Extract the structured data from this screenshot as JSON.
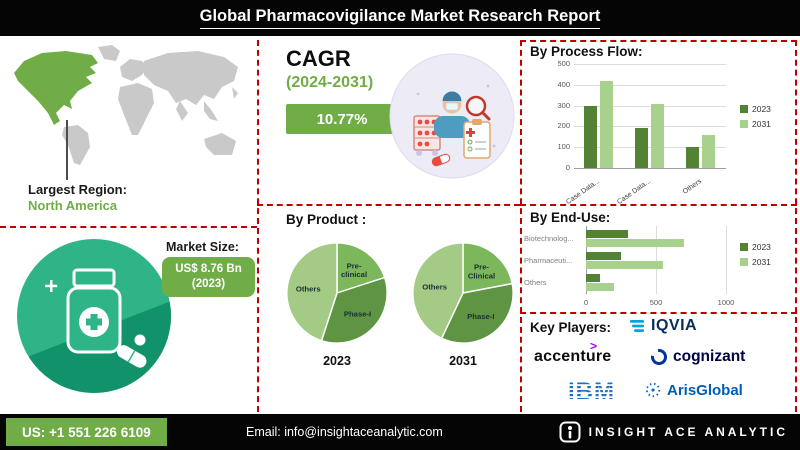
{
  "header": {
    "title": "Global Pharmacovigilance Market Research Report"
  },
  "left_panel": {
    "largest_region_label": "Largest Region:",
    "largest_region_value": "North America",
    "market_size_label": "Market Size:",
    "market_size_value": "US$ 8.76 Bn",
    "market_size_year": "(2023)"
  },
  "cagr": {
    "label": "CAGR",
    "period": "(2024-2031)",
    "value": "10.77%"
  },
  "key_players": {
    "title": "Key Players:",
    "players": [
      "IQVIA",
      "accenture",
      "cognizant",
      "IBM",
      "ArisGlobal"
    ]
  },
  "footer": {
    "phone": "US: +1 551 226 6109",
    "email": "Email: info@insightaceanalytic.com",
    "brand": "INSIGHT ACE ANALYTIC"
  },
  "colors": {
    "accent_green": "#70AD47",
    "series_2023": "#548235",
    "series_2031": "#A9D18E",
    "dashed_divider_red": "#C00000",
    "map_highlight_green": "#70AD47",
    "illustration_teal": "#2EB487"
  },
  "chart_data": [
    {
      "name": "by-process-flow",
      "type": "bar",
      "title": "By Process Flow:",
      "categories": [
        "Case Data...",
        "Case Data...",
        "Others"
      ],
      "series": [
        {
          "name": "2023",
          "values": [
            300,
            190,
            100
          ],
          "color": "#548235"
        },
        {
          "name": "2031",
          "values": [
            420,
            310,
            160
          ],
          "color": "#A9D18E"
        }
      ],
      "ylim": [
        0,
        500
      ],
      "yticks": [
        0,
        100,
        200,
        300,
        400,
        500
      ],
      "grid": true,
      "legend_position": "right"
    },
    {
      "name": "by-end-use",
      "type": "bar",
      "orientation": "horizontal",
      "title": "By End-Use:",
      "categories": [
        "Biotechnolog...",
        "Pharmaceuti...",
        "Others"
      ],
      "series": [
        {
          "name": "2023",
          "values": [
            300,
            250,
            100
          ],
          "color": "#548235"
        },
        {
          "name": "2031",
          "values": [
            700,
            550,
            200
          ],
          "color": "#A9D18E"
        }
      ],
      "xlim": [
        0,
        1000
      ],
      "xticks": [
        0,
        500,
        1000
      ],
      "grid": true,
      "legend_position": "right"
    },
    {
      "name": "by-product-2023",
      "type": "pie",
      "title": "By Product :",
      "year": "2023",
      "labels": [
        "Pre-clinical",
        "Phase-I",
        "Others"
      ],
      "values": [
        20,
        35,
        45
      ],
      "colors": [
        "#7CB75B",
        "#5E9442",
        "#A3CB85"
      ]
    },
    {
      "name": "by-product-2031",
      "type": "pie",
      "year": "2031",
      "labels": [
        "Pre-Clinical",
        "Phase-I",
        "Others"
      ],
      "values": [
        22,
        35,
        43
      ],
      "colors": [
        "#7CB75B",
        "#5E9442",
        "#A3CB85"
      ]
    }
  ]
}
